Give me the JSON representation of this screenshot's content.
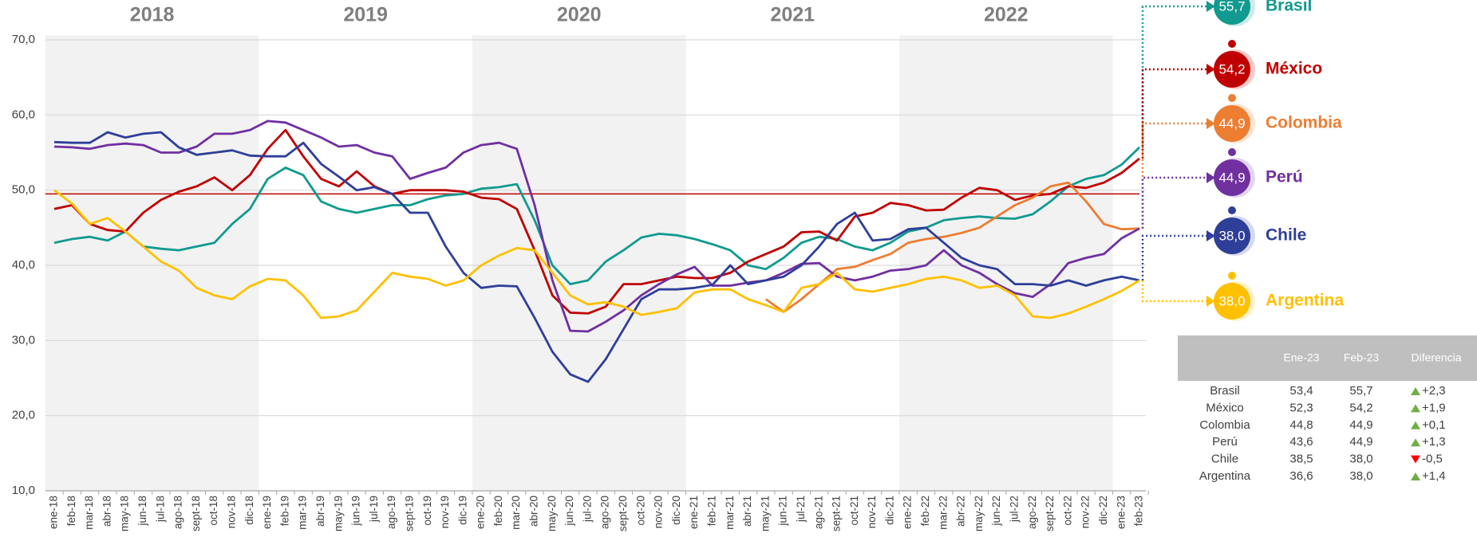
{
  "chart_data": {
    "type": "line",
    "categories": [
      "ene-18",
      "feb-18",
      "mar-18",
      "abr-18",
      "may-18",
      "jun-18",
      "jul-18",
      "ago-18",
      "sept-18",
      "oct-18",
      "nov-18",
      "dic-18",
      "ene-19",
      "feb-19",
      "mar-19",
      "abr-19",
      "may-19",
      "jun-19",
      "jul-19",
      "ago-19",
      "sept-19",
      "oct-19",
      "nov-19",
      "dic-19",
      "ene-20",
      "feb-20",
      "mar-20",
      "abr-20",
      "may-20",
      "jun-20",
      "jul-20",
      "ago-20",
      "sept-20",
      "oct-20",
      "nov-20",
      "dic-20",
      "ene-21",
      "feb-21",
      "mar-21",
      "abr-21",
      "may-21",
      "jun-21",
      "jul-21",
      "ago-21",
      "sept-21",
      "oct-21",
      "nov-21",
      "dic-21",
      "ene-22",
      "feb-22",
      "mar-22",
      "abr-22",
      "may-22",
      "jun-22",
      "jul-22",
      "ago-22",
      "sept-22",
      "oct-22",
      "nov-22",
      "dic-22",
      "ene-23",
      "feb-23"
    ],
    "year_labels": [
      "2018",
      "2019",
      "2020",
      "2021",
      "2022"
    ],
    "series": [
      {
        "name": "Brasil",
        "color": "#119a8f",
        "end_label": "55,7",
        "values": [
          43,
          43.5,
          43.8,
          43.3,
          44.5,
          42.5,
          42.2,
          42,
          42.5,
          43,
          45.5,
          47.5,
          51.5,
          53,
          52,
          48.5,
          47.5,
          47,
          47.5,
          48,
          48,
          48.8,
          49.3,
          49.5,
          50.2,
          50.4,
          50.8,
          46,
          40,
          37.5,
          38,
          40.5,
          42,
          43.7,
          44.2,
          44,
          43.5,
          42.8,
          42,
          40,
          39.5,
          41,
          43,
          43.8,
          43.5,
          42.5,
          42,
          43,
          44.5,
          45,
          46,
          46.3,
          46.5,
          46.3,
          46.2,
          46.8,
          48.5,
          50.5,
          51.5,
          52,
          53.4,
          55.7
        ]
      },
      {
        "name": "México",
        "color": "#c00000",
        "end_label": "54,2",
        "values": [
          47.5,
          48,
          45.5,
          44.7,
          44.5,
          47,
          48.7,
          49.8,
          50.5,
          51.7,
          50,
          52,
          55.5,
          58,
          54.5,
          51.5,
          50.5,
          52.5,
          50.5,
          49.5,
          50,
          50,
          50,
          49.8,
          49,
          48.8,
          47.5,
          42,
          36,
          33.7,
          33.6,
          34.5,
          37.5,
          37.5,
          38,
          38.5,
          38.3,
          38.3,
          39,
          40.5,
          41.5,
          42.5,
          44.4,
          44.5,
          43.3,
          46.5,
          47,
          48.3,
          48,
          47.3,
          47.4,
          49,
          50.3,
          50,
          48.7,
          49.3,
          49.5,
          50.5,
          50.3,
          51,
          52.3,
          54.2
        ]
      },
      {
        "name": "Colombia",
        "color": "#ed7d31",
        "end_label": "44,9",
        "values": [
          null,
          null,
          null,
          null,
          null,
          null,
          null,
          null,
          null,
          null,
          null,
          null,
          null,
          null,
          null,
          null,
          null,
          null,
          null,
          null,
          null,
          null,
          null,
          null,
          null,
          null,
          null,
          null,
          null,
          null,
          null,
          null,
          null,
          null,
          null,
          null,
          null,
          null,
          null,
          null,
          35.5,
          33.8,
          35.5,
          37.5,
          39.5,
          39.8,
          40.7,
          41.5,
          43,
          43.5,
          43.8,
          44.3,
          45,
          46.5,
          48,
          49,
          50.5,
          51,
          48.5,
          45.5,
          44.8,
          44.9
        ]
      },
      {
        "name": "Perú",
        "color": "#7030a0",
        "end_label": "44,9",
        "values": [
          55.8,
          55.7,
          55.5,
          56,
          56.2,
          56,
          55,
          55,
          55.8,
          57.5,
          57.5,
          58,
          59.2,
          59,
          58,
          57,
          55.8,
          56,
          55,
          54.5,
          51.5,
          52.3,
          53,
          55,
          56,
          56.3,
          55.5,
          48,
          38,
          31.3,
          31.2,
          32.5,
          34,
          36,
          37.5,
          38.8,
          39.8,
          37.3,
          37.3,
          37.7,
          38,
          39,
          40.2,
          40.3,
          38.5,
          38,
          38.5,
          39.3,
          39.5,
          40,
          42,
          40,
          39,
          37.5,
          36.3,
          35.8,
          37.5,
          40.3,
          41,
          41.5,
          43.6,
          44.9
        ]
      },
      {
        "name": "Chile",
        "color": "#2e3f99",
        "end_label": "38,0",
        "values": [
          56.4,
          56.3,
          56.3,
          57.7,
          57,
          57.5,
          57.7,
          55.7,
          54.7,
          55,
          55.3,
          54.6,
          54.5,
          54.5,
          56.3,
          53.5,
          51.8,
          50,
          50.4,
          49.5,
          47,
          47,
          42.5,
          39,
          37,
          37.3,
          37.2,
          33,
          28.5,
          25.5,
          24.5,
          27.5,
          31.5,
          35.5,
          36.8,
          36.8,
          37,
          37.4,
          40,
          37.5,
          38,
          38.5,
          40,
          42.5,
          45.5,
          47,
          43.3,
          43.5,
          44.8,
          45,
          43,
          41,
          40,
          39.5,
          37.5,
          37.5,
          37.3,
          38,
          37.3,
          38,
          38.5,
          38.0
        ]
      },
      {
        "name": "Argentina",
        "color": "#ffc000",
        "end_label": "38,0",
        "values": [
          50,
          48.2,
          45.5,
          46.3,
          44.5,
          42.5,
          40.5,
          39.3,
          37,
          36,
          35.5,
          37.2,
          38.2,
          38,
          36,
          33,
          33.2,
          34,
          36.5,
          39,
          38.5,
          38.2,
          37.3,
          38,
          40,
          41.3,
          42.3,
          42,
          39,
          36,
          34.8,
          35.1,
          34.5,
          33.4,
          33.8,
          34.3,
          36.4,
          36.8,
          36.8,
          35.5,
          34.7,
          33.8,
          37,
          37.5,
          39,
          36.8,
          36.5,
          37,
          37.5,
          38.2,
          38.5,
          38,
          37,
          37.3,
          36,
          33.2,
          33,
          33.6,
          34.5,
          35.5,
          36.6,
          38.0
        ]
      }
    ],
    "ylim": [
      10,
      70
    ],
    "yticks": [
      {
        "value": 10,
        "label": "10,0"
      },
      {
        "value": 20,
        "label": "20,0"
      },
      {
        "value": 30,
        "label": "30,0"
      },
      {
        "value": 40,
        "label": "40,0"
      },
      {
        "value": 50,
        "label": "50,0"
      },
      {
        "value": 60,
        "label": "60,0"
      },
      {
        "value": 70,
        "label": "70,0"
      }
    ],
    "reference_line": {
      "value": 49.5,
      "color": "#c00000"
    },
    "grid": true
  },
  "table": {
    "columns": [
      "Ene-23",
      "Feb-23",
      "Diferencia"
    ],
    "rows": [
      [
        "Brasil",
        "53,4",
        "55,7",
        "+2,3"
      ],
      [
        "México",
        "52,3",
        "54,2",
        "+1,9"
      ],
      [
        "Colombia",
        "44,8",
        "44,9",
        "+0,1"
      ],
      [
        "Perú",
        "43,6",
        "44,9",
        "+1,3"
      ],
      [
        "Chile",
        "38,5",
        "38,0",
        "-0,5"
      ],
      [
        "Argentina",
        "36,6",
        "38,0",
        "+1,4"
      ]
    ]
  }
}
